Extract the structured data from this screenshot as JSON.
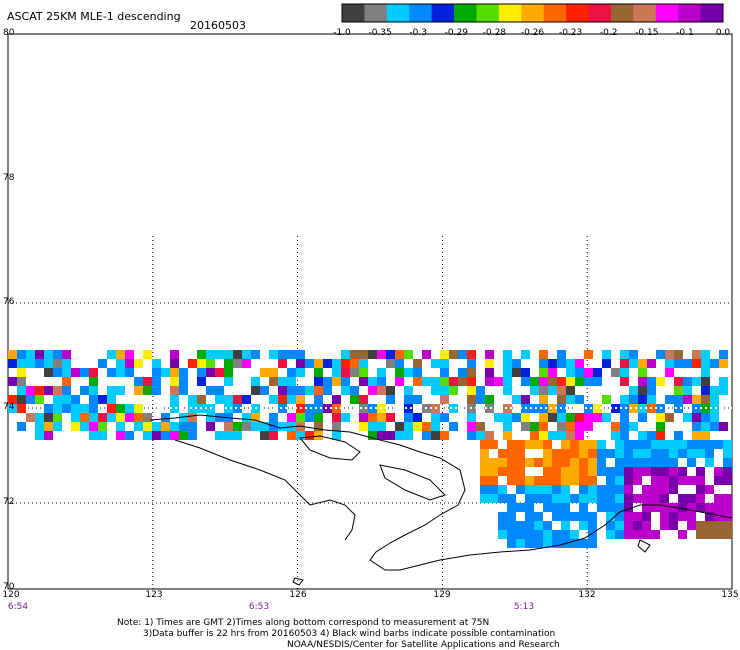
{
  "header": {
    "title": "ASCAT 25KM MLE-1 descending",
    "date": "20160503"
  },
  "colorbar": {
    "colors": [
      "#404040",
      "#808080",
      "#00ccff",
      "#0088ff",
      "#0022dd",
      "#00aa00",
      "#55dd00",
      "#ffee00",
      "#ffaa00",
      "#ff6600",
      "#ff2200",
      "#ee1144",
      "#996633",
      "#cc7755",
      "#ff00ff",
      "#bb00cc",
      "#7700aa"
    ],
    "labels": [
      "-1.0",
      "-0.35",
      "-0.3",
      "-0.29",
      "-0.28",
      "-0.26",
      "-0.23",
      "-0.2",
      "-0.15",
      "-0.1",
      "0.0"
    ]
  },
  "map": {
    "lat_labels": [
      "80",
      "78",
      "76",
      "74",
      "72",
      "70"
    ],
    "lon_labels": [
      "120",
      "123",
      "126",
      "129",
      "132",
      "135"
    ],
    "time_labels": [
      "6:54",
      "6:53",
      "5:13"
    ],
    "lat_range": [
      70,
      80
    ],
    "lon_range": [
      120,
      135
    ]
  },
  "footer": {
    "line1": "Note: 1) Times are GMT 2)Times along bottom correspond to measurement at 75N",
    "line2": "3)Data buffer is 22 hrs from 20160503 4) Black wind barbs indicate possible contamination",
    "line3": "NOAA/NESDIS/Center for Satellite Applications and Research"
  }
}
